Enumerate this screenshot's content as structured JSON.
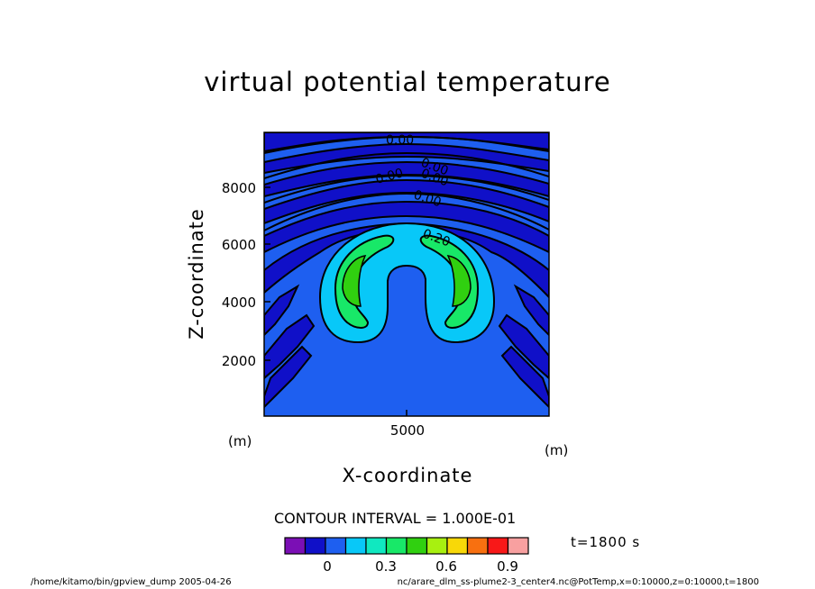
{
  "chart_data": {
    "type": "contour",
    "title": "virtual potential temperature",
    "xlabel": "X-coordinate",
    "ylabel": "Z-coordinate",
    "x_unit": "(m)",
    "y_unit": "(m)",
    "xlim": [
      0,
      10000
    ],
    "ylim": [
      0,
      10000
    ],
    "x_ticks": [
      "5000"
    ],
    "y_ticks": [
      "2000",
      "4000",
      "6000",
      "8000"
    ],
    "contour_labels": [
      "0.00",
      "0.00",
      "0.00",
      "0.00",
      "0.00",
      "0.20"
    ],
    "contour_interval": "CONTOUR INTERVAL = 1.000E-01",
    "time": "t=1800 s",
    "colorbar": {
      "colors": [
        "#7b0fb5",
        "#1010c8",
        "#1e5ff0",
        "#08c8f8",
        "#10e8c0",
        "#18e868",
        "#30d010",
        "#a8f010",
        "#f8d808",
        "#f87010",
        "#f81818",
        "#f8a0a0"
      ],
      "tick_labels": [
        "0",
        "0.3",
        "0.6",
        "0.9"
      ]
    }
  },
  "footer": {
    "left": "/home/kitamo/bin/gpview_dump  2005-04-26",
    "right": "nc/arare_dlm_ss-plume2-3_center4.nc@PotTemp,x=0:10000,z=0:10000,t=1800"
  }
}
